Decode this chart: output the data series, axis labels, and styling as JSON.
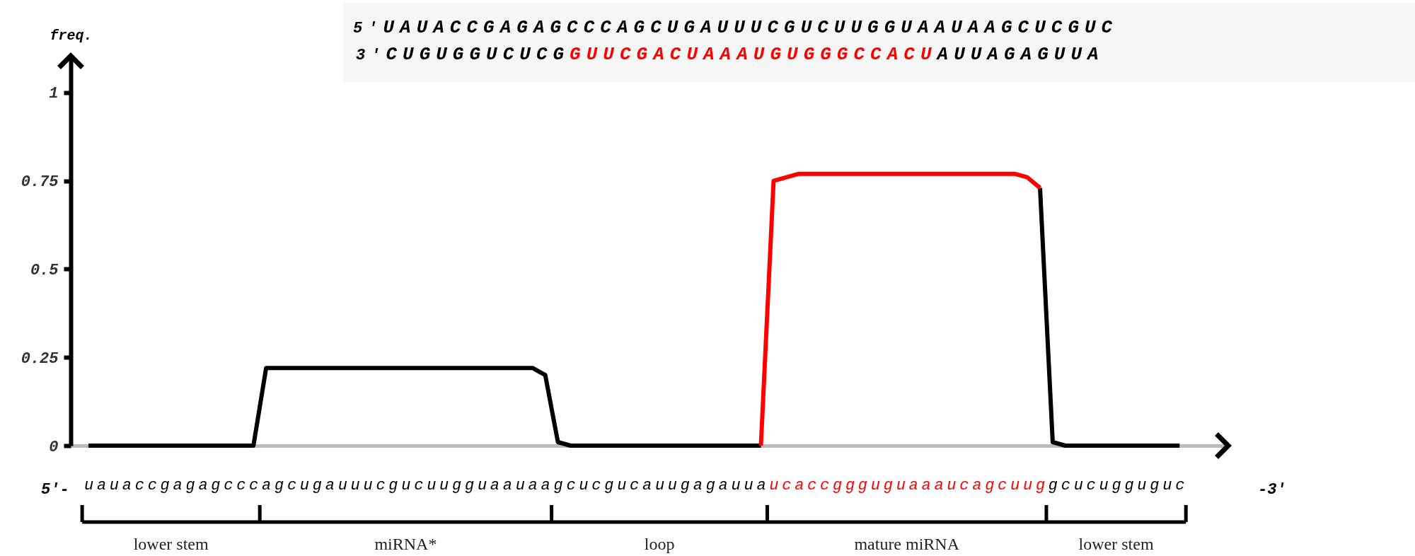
{
  "chart_data": {
    "type": "line",
    "ylabel": "freq.",
    "categories": [
      "u",
      "a",
      "u",
      "a",
      "c",
      "c",
      "g",
      "a",
      "g",
      "a",
      "g",
      "c",
      "c",
      "c",
      "a",
      "g",
      "c",
      "u",
      "g",
      "a",
      "u",
      "u",
      "u",
      "c",
      "g",
      "u",
      "c",
      "u",
      "u",
      "g",
      "g",
      "u",
      "a",
      "a",
      "u",
      "a",
      "a",
      "g",
      "c",
      "u",
      "c",
      "g",
      "u",
      "c",
      "a",
      "u",
      "u",
      "g",
      "a",
      "g",
      "a",
      "u",
      "u",
      "a",
      "u",
      "c",
      "a",
      "c",
      "c",
      "g",
      "g",
      "g",
      "u",
      "g",
      "u",
      "a",
      "a",
      "a",
      "u",
      "c",
      "a",
      "g",
      "c",
      "u",
      "u",
      "g",
      "g",
      "c",
      "u",
      "c",
      "u",
      "g",
      "g",
      "u",
      "g",
      "u",
      "c"
    ],
    "ylim": [
      0,
      1.1
    ],
    "yticks": [
      0,
      0.25,
      0.5,
      0.75,
      1
    ],
    "series": [
      {
        "color": "#000000",
        "values": [
          0,
          0,
          0,
          0,
          0,
          0,
          0,
          0,
          0,
          0,
          0,
          0,
          0,
          0,
          0.22,
          0.22,
          0.22,
          0.22,
          0.22,
          0.22,
          0.22,
          0.22,
          0.22,
          0.22,
          0.22,
          0.22,
          0.22,
          0.22,
          0.22,
          0.22,
          0.22,
          0.22,
          0.22,
          0.22,
          0.22,
          0.22,
          0.2,
          0.01,
          0,
          0,
          0,
          0,
          0,
          0,
          0,
          0,
          0,
          0,
          0,
          0,
          0,
          0,
          0,
          0,
          null,
          null,
          null,
          null,
          null,
          null,
          null,
          null,
          null,
          null,
          null,
          null,
          null,
          null,
          null,
          null,
          null,
          null,
          null,
          null,
          null,
          0.73,
          0.01,
          0,
          0,
          0,
          0,
          0,
          0,
          0,
          0,
          0,
          0
        ]
      },
      {
        "color": "#ff0000",
        "values": [
          null,
          null,
          null,
          null,
          null,
          null,
          null,
          null,
          null,
          null,
          null,
          null,
          null,
          null,
          null,
          null,
          null,
          null,
          null,
          null,
          null,
          null,
          null,
          null,
          null,
          null,
          null,
          null,
          null,
          null,
          null,
          null,
          null,
          null,
          null,
          null,
          null,
          null,
          null,
          null,
          null,
          null,
          null,
          null,
          null,
          null,
          null,
          null,
          null,
          null,
          null,
          null,
          null,
          0,
          0.75,
          0.76,
          0.77,
          0.77,
          0.77,
          0.77,
          0.77,
          0.77,
          0.77,
          0.77,
          0.77,
          0.77,
          0.77,
          0.77,
          0.77,
          0.77,
          0.77,
          0.77,
          0.77,
          0.77,
          0.76,
          0.73,
          null,
          null,
          null,
          null,
          null,
          null,
          null,
          null,
          null,
          null,
          null
        ]
      }
    ],
    "annotations": [
      "5'-",
      "-3'",
      "5'UAUACCGAGAGCCCAGCUGAUUUCGUCUUGGUAAUAAGCUCGUC",
      "3'CUGUGGUCUCGGUUCGACUAAAUGUGGGCCACUAUUAGAGUUA",
      "lower stem",
      "miRNA*",
      "loop",
      "mature miRNA",
      "lower stem"
    ]
  }
}
